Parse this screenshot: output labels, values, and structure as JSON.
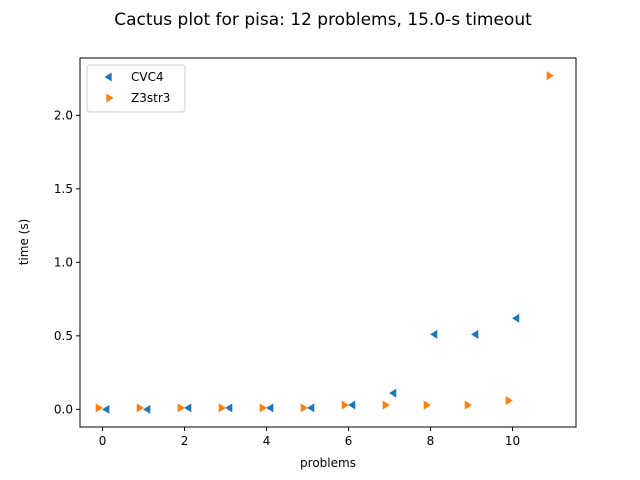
{
  "chart_data": {
    "type": "scatter",
    "title": "Cactus plot for pisa: 12 problems, 15.0-s timeout",
    "xlabel": "problems",
    "ylabel": "time (s)",
    "xlim": [
      -0.55,
      11.55
    ],
    "ylim": [
      -0.12,
      2.39
    ],
    "xticks": [
      0,
      2,
      4,
      6,
      8,
      10
    ],
    "yticks": [
      0.0,
      0.5,
      1.0,
      1.5,
      2.0
    ],
    "xtick_labels": [
      "0",
      "2",
      "4",
      "6",
      "8",
      "10"
    ],
    "ytick_labels": [
      "0.0",
      "0.5",
      "1.0",
      "1.5",
      "2.0"
    ],
    "grid": false,
    "legend_position": "upper-left",
    "series": [
      {
        "name": "CVC4",
        "marker": "triangle-left",
        "color": "#1f77b4",
        "x": [
          0.1,
          1.1,
          2.1,
          3.1,
          4.1,
          5.1,
          6.1,
          7.1,
          8.1,
          9.1,
          10.1
        ],
        "y": [
          0.0,
          0.0,
          0.01,
          0.01,
          0.01,
          0.01,
          0.03,
          0.11,
          0.51,
          0.51,
          0.62
        ]
      },
      {
        "name": "Z3str3",
        "marker": "triangle-right",
        "color": "#ff7f0e",
        "x": [
          -0.1,
          0.9,
          1.9,
          2.9,
          3.9,
          4.9,
          5.9,
          6.9,
          7.9,
          8.9,
          9.9,
          10.9
        ],
        "y": [
          0.01,
          0.01,
          0.01,
          0.01,
          0.01,
          0.01,
          0.03,
          0.03,
          0.03,
          0.03,
          0.06,
          2.27
        ]
      }
    ]
  }
}
